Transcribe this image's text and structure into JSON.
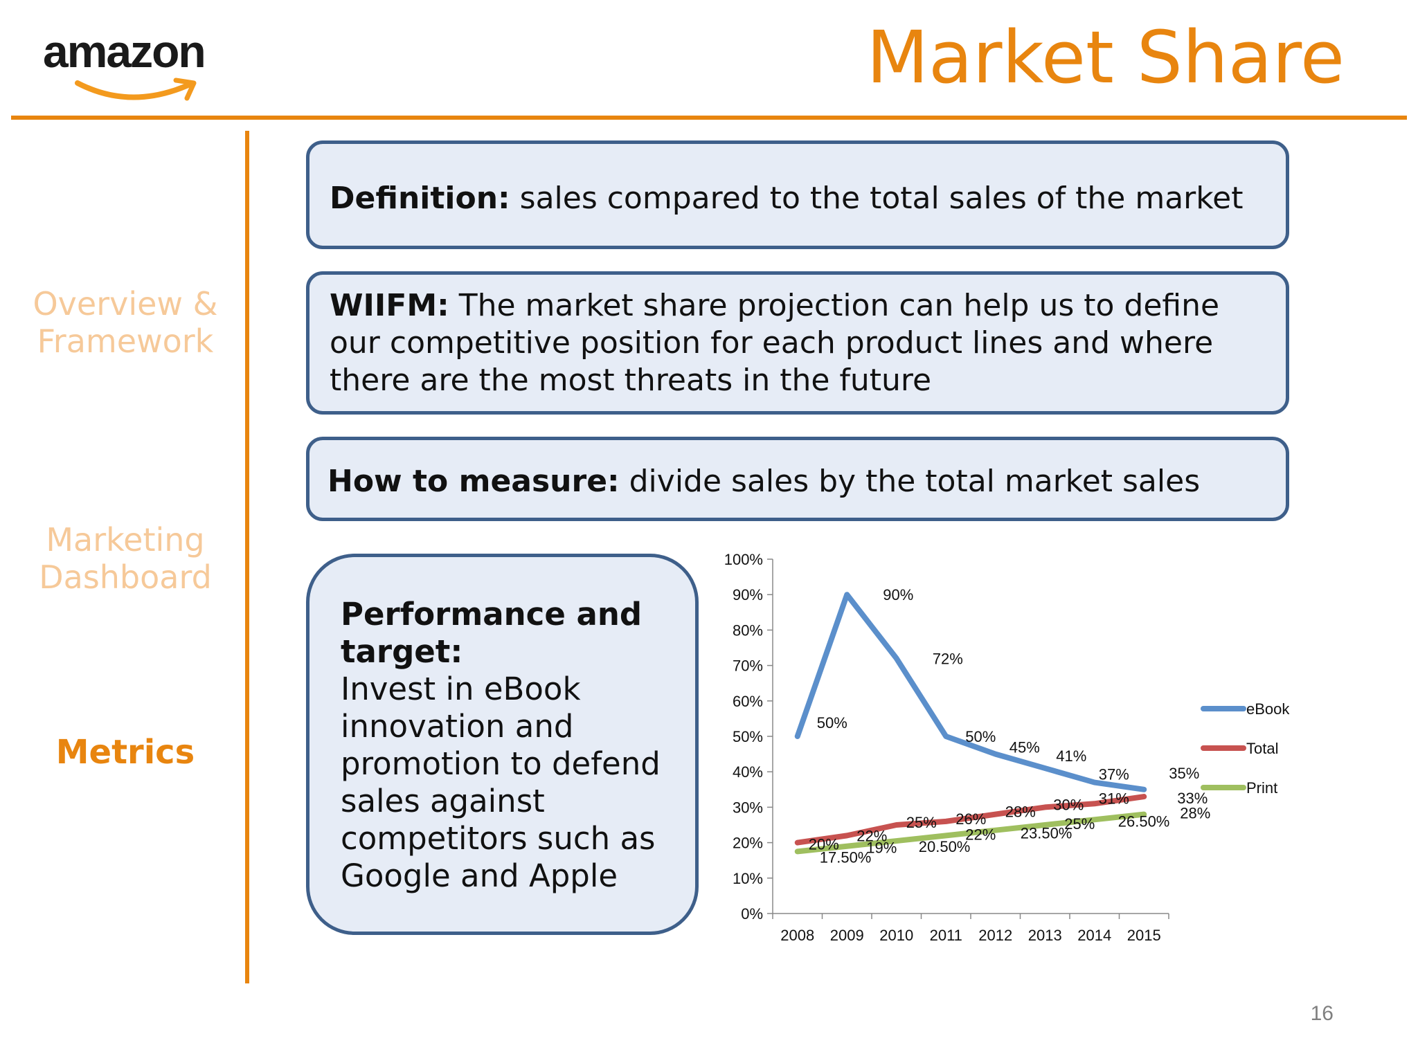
{
  "header": {
    "logo_text": "amazon",
    "title": "Market Share"
  },
  "sidebar": {
    "items": [
      {
        "label_line1": "Overview &",
        "label_line2": "Framework"
      },
      {
        "label_line1": "Marketing",
        "label_line2": "Dashboard"
      },
      {
        "label_line1": "Metrics",
        "label_line2": ""
      }
    ],
    "active_index": 2
  },
  "boxes": {
    "definition": {
      "label": "Definition:",
      "text": " sales compared to the total sales of the market"
    },
    "wiifm": {
      "label": "WIIFM:",
      "text": " The market share projection can help us to define our competitive position for each product lines and where there are the most threats in the future"
    },
    "measure": {
      "label": "How to measure:",
      "text": " divide sales by the total market sales"
    },
    "performance": {
      "label": "Performance and target:",
      "text": "Invest in eBook innovation and promotion to defend sales against competitors such as Google and Apple"
    }
  },
  "colors": {
    "accent": "#e8850f",
    "box_fill": "#e6ecf6",
    "box_border": "#3e5f8a",
    "ebook": "#5b8fcb",
    "total": "#c75250",
    "print": "#9fbf5f"
  },
  "page_number": "16",
  "chart_data": {
    "type": "line",
    "x": [
      "2008",
      "2009",
      "2010",
      "2011",
      "2012",
      "2013",
      "2014",
      "2015"
    ],
    "ylim": [
      0,
      100
    ],
    "yticks": [
      "0%",
      "10%",
      "20%",
      "30%",
      "40%",
      "50%",
      "60%",
      "70%",
      "80%",
      "90%",
      "100%"
    ],
    "legend_position": "right",
    "series": [
      {
        "name": "eBook",
        "color": "#5b8fcb",
        "values": [
          50,
          90,
          72,
          50,
          45,
          41,
          37,
          35
        ],
        "labels": [
          "50%",
          "90%",
          "72%",
          "50%",
          "45%",
          "41%",
          "37%",
          "35%"
        ]
      },
      {
        "name": "Total",
        "color": "#c75250",
        "values": [
          20,
          22,
          25,
          26,
          28,
          30,
          31,
          33
        ],
        "labels": [
          "20%",
          "22%",
          "25%",
          "26%",
          "28%",
          "30%",
          "31%",
          "33%"
        ]
      },
      {
        "name": "Print",
        "color": "#9fbf5f",
        "values": [
          17.5,
          19,
          20.5,
          22,
          23.5,
          25,
          26.5,
          28
        ],
        "labels": [
          "17.50%",
          "19%",
          "20.50%",
          "22%",
          "23.50%",
          "25%",
          "26.50%",
          "28%"
        ]
      }
    ]
  }
}
